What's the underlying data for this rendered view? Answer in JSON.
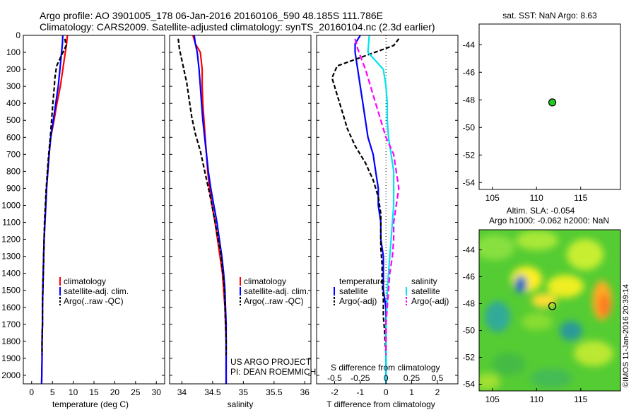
{
  "header": {
    "line1": "Argo profile: AO 3901005_178 06-Jan-2016 20160106_590 48.185S 111.786E",
    "line2": "Climatology: CARS2009. Satellite-adjusted climatology: synTS_20160104.nc (2.3d earlier)"
  },
  "colors": {
    "climatology": "#ff0000",
    "satellite": "#0000ff",
    "argo": "#000000",
    "salinity_sat": "#00e5ee",
    "salinity_argo": "#ff00ff",
    "marker": "#22cc22"
  },
  "footer": {
    "project": "US ARGO PROJECT",
    "pi": "PI: DEAN ROEMMICH",
    "credit": "©IMOS 11-Jan-2016 20:39:14"
  },
  "panels": {
    "temperature": {
      "xlabel": "temperature (deg C)",
      "legend": [
        "climatology",
        "satellite-adj. clim.",
        "Argo(..raw -QC)"
      ]
    },
    "salinity": {
      "xlabel": "salinity",
      "legend": [
        "climatology",
        "satellite-adj. clim.",
        "Argo(..raw -QC)"
      ]
    },
    "difference": {
      "xlabel": "T difference from climatology",
      "toplabel": "S difference from climatology",
      "legend_t_title": "temperature",
      "legend_s_title": "salinity",
      "legend_t": [
        "satellite",
        "Argo(-adj)"
      ],
      "legend_s": [
        "satellite",
        "Argo(-adj)"
      ]
    },
    "sst": {
      "title": "sat. SST: NaN Argo: 8.63"
    },
    "sla": {
      "title1": "Altim. SLA: -0.054",
      "title2": "Argo h1000: -0.062 h2000: NaN"
    }
  },
  "chart_data": [
    {
      "type": "line",
      "name": "temperature",
      "xticks": [
        "0",
        "5",
        "10",
        "15",
        "20",
        "25",
        "30"
      ],
      "xlim": [
        -2,
        32
      ],
      "ylim": [
        0,
        2050
      ],
      "yticks": [
        "0",
        "100",
        "200",
        "300",
        "400",
        "500",
        "600",
        "700",
        "800",
        "900",
        "1000",
        "1100",
        "1200",
        "1300",
        "1400",
        "1500",
        "1600",
        "1700",
        "1800",
        "1900",
        "2000"
      ],
      "series": [
        {
          "name": "climatology",
          "color": "#ff0000",
          "dash": "",
          "x": [
            8.6,
            8.4,
            8.1,
            7.5,
            6.9,
            6.1,
            5.4,
            4.6,
            4.2,
            3.9,
            3.6,
            3.4,
            3.2,
            3.0,
            2.9,
            2.8,
            2.7,
            2.6,
            2.6,
            2.5,
            2.5,
            2.4
          ],
          "y": [
            0,
            50,
            100,
            200,
            300,
            400,
            500,
            600,
            700,
            800,
            900,
            1000,
            1100,
            1200,
            1300,
            1400,
            1500,
            1600,
            1700,
            1800,
            1900,
            2050
          ]
        },
        {
          "name": "satellite-adj. clim.",
          "color": "#0000ff",
          "dash": "",
          "x": [
            7.5,
            7.4,
            7.2,
            6.8,
            6.4,
            5.8,
            5.2,
            4.6,
            4.2,
            3.9,
            3.6,
            3.4,
            3.2,
            3.0,
            2.9,
            2.8,
            2.7,
            2.6,
            2.6,
            2.5,
            2.5,
            2.4
          ],
          "y": [
            0,
            50,
            100,
            200,
            300,
            400,
            500,
            600,
            700,
            800,
            900,
            1000,
            1100,
            1200,
            1300,
            1400,
            1500,
            1600,
            1700,
            1800,
            1900,
            2050
          ]
        },
        {
          "name": "Argo(..raw -QC)",
          "color": "#000000",
          "dash": "6,3",
          "x": [
            8.0,
            8.3,
            6.0,
            5.6,
            5.4,
            5.1,
            4.8,
            4.5,
            4.1,
            3.8,
            3.5,
            3.3,
            3.1,
            3.0,
            2.9,
            2.8,
            2.7,
            2.6,
            2.6,
            2.5,
            2.5
          ],
          "y": [
            20,
            60,
            180,
            250,
            320,
            400,
            500,
            600,
            700,
            800,
            900,
            1000,
            1100,
            1200,
            1300,
            1400,
            1500,
            1600,
            1700,
            1800,
            1880
          ]
        }
      ]
    },
    {
      "type": "line",
      "name": "salinity",
      "xticks": [
        "34",
        "34.5",
        "35",
        "35.5",
        "36"
      ],
      "xlim": [
        33.8,
        36.1
      ],
      "ylim": [
        0,
        2050
      ],
      "series": [
        {
          "name": "climatology",
          "color": "#ff0000",
          "dash": "",
          "x": [
            34.18,
            34.22,
            34.3,
            34.33,
            34.33,
            34.34,
            34.36,
            34.38,
            34.4,
            34.42,
            34.45,
            34.49,
            34.54,
            34.58,
            34.62,
            34.66,
            34.68,
            34.7,
            34.71,
            34.72,
            34.72,
            34.72
          ],
          "y": [
            0,
            50,
            100,
            200,
            300,
            400,
            500,
            600,
            700,
            800,
            900,
            1000,
            1100,
            1200,
            1300,
            1400,
            1500,
            1600,
            1700,
            1800,
            1900,
            2050
          ]
        },
        {
          "name": "satellite-adj. clim.",
          "color": "#0000ff",
          "dash": "",
          "x": [
            34.2,
            34.22,
            34.25,
            34.28,
            34.3,
            34.32,
            34.34,
            34.37,
            34.4,
            34.43,
            34.47,
            34.52,
            34.57,
            34.61,
            34.65,
            34.68,
            34.7,
            34.71,
            34.72,
            34.72,
            34.72,
            34.72
          ],
          "y": [
            0,
            50,
            100,
            200,
            300,
            400,
            500,
            600,
            700,
            800,
            900,
            1000,
            1100,
            1200,
            1300,
            1400,
            1500,
            1600,
            1700,
            1800,
            1900,
            2050
          ]
        },
        {
          "name": "Argo(..raw -QC)",
          "color": "#000000",
          "dash": "6,3",
          "x": [
            33.94,
            33.96,
            34.02,
            34.08,
            34.12,
            34.16,
            34.22,
            34.3,
            34.36,
            34.42,
            34.48,
            34.53,
            34.58,
            34.63,
            34.66,
            34.69,
            34.7,
            34.71,
            34.72,
            34.72
          ],
          "y": [
            20,
            80,
            180,
            280,
            380,
            480,
            580,
            680,
            780,
            880,
            980,
            1080,
            1180,
            1280,
            1380,
            1480,
            1580,
            1680,
            1780,
            1880
          ]
        }
      ]
    },
    {
      "type": "line",
      "name": "difference",
      "xticks": [
        "-2",
        "-1",
        "0",
        "1",
        "2"
      ],
      "xlim": [
        -2.7,
        2.8
      ],
      "s_ticks": [
        "-0.5",
        "-0.25",
        "0",
        "0.25",
        "0.5"
      ],
      "ylim": [
        0,
        2050
      ],
      "series": [
        {
          "name": "temperature satellite",
          "color": "#0000ff",
          "dash": "",
          "x": [
            -1.0,
            -1.2,
            -1.2,
            -1.1,
            -1.0,
            -0.9,
            -0.8,
            -0.7,
            -0.5,
            -0.4,
            -0.3,
            -0.3,
            -0.2,
            -0.2,
            -0.1,
            -0.1,
            -0.1,
            0,
            0,
            0,
            0,
            0
          ],
          "y": [
            0,
            50,
            100,
            200,
            300,
            400,
            500,
            600,
            700,
            800,
            900,
            1000,
            1100,
            1200,
            1300,
            1400,
            1500,
            1600,
            1700,
            1800,
            1900,
            2050
          ]
        },
        {
          "name": "temperature Argo(-adj)",
          "color": "#000000",
          "dash": "6,3",
          "x": [
            0.5,
            0.3,
            -1.9,
            -2.1,
            -1.9,
            -1.7,
            -1.5,
            -1.2,
            -0.8,
            -0.5,
            -0.3,
            -0.2,
            -0.2,
            -0.2,
            -0.15,
            -0.15,
            -0.1,
            -0.1,
            -0.05,
            0
          ],
          "y": [
            20,
            60,
            180,
            250,
            350,
            450,
            550,
            650,
            750,
            850,
            950,
            1050,
            1150,
            1250,
            1350,
            1450,
            1550,
            1650,
            1750,
            1880
          ]
        },
        {
          "name": "salinity satellite",
          "color": "#00e5ee",
          "dash": "",
          "x": [
            -0.65,
            -0.7,
            -0.1,
            0,
            0.05,
            0.05,
            0.1,
            0.2,
            0.3,
            0.3,
            0.3,
            0.25,
            0.2,
            0.15,
            0.1,
            0.05,
            0.03,
            0,
            0,
            0,
            0
          ],
          "y": [
            0,
            100,
            200,
            300,
            400,
            500,
            600,
            700,
            800,
            900,
            1000,
            1100,
            1200,
            1300,
            1400,
            1500,
            1600,
            1700,
            1800,
            1900,
            2050
          ]
        },
        {
          "name": "salinity Argo(-adj)",
          "color": "#ff00ff",
          "dash": "8,4",
          "x": [
            -1.2,
            -1.1,
            -0.8,
            -0.6,
            -0.4,
            -0.2,
            0,
            0.3,
            0.4,
            0.5,
            0.4,
            0.3,
            0.3,
            0.25,
            0.15,
            0.1,
            0.05,
            0,
            0
          ],
          "y": [
            20,
            80,
            200,
            300,
            400,
            500,
            600,
            700,
            800,
            900,
            1000,
            1100,
            1200,
            1300,
            1400,
            1500,
            1600,
            1700,
            1880
          ]
        }
      ]
    },
    {
      "type": "scatter",
      "name": "sst_map",
      "xticks": [
        "105",
        "110",
        "115"
      ],
      "yticks": [
        "-44",
        "-46",
        "-48",
        "-50",
        "-52",
        "-54"
      ],
      "xlim": [
        103.5,
        119.5
      ],
      "ylim": [
        -54.5,
        -42.5
      ],
      "points": [
        {
          "x": 111.786,
          "y": -48.185
        }
      ]
    },
    {
      "type": "heatmap",
      "name": "sla_map",
      "xticks": [
        "105",
        "110",
        "115"
      ],
      "yticks": [
        "-44",
        "-46",
        "-48",
        "-50",
        "-52",
        "-54"
      ],
      "xlim": [
        103.5,
        119.5
      ],
      "ylim": [
        -54.5,
        -42.5
      ],
      "points": [
        {
          "x": 111.786,
          "y": -48.185
        }
      ]
    }
  ]
}
